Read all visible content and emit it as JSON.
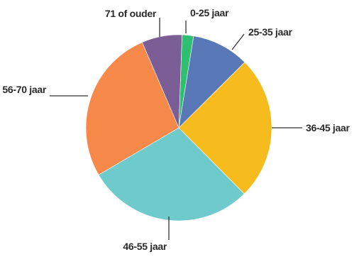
{
  "chart_data": {
    "type": "pie",
    "title": "",
    "start_angle_deg": 2,
    "direction": "clockwise",
    "categories": [
      "0-25 jaar",
      "25-35 jaar",
      "36-45 jaar",
      "46-55 jaar",
      "56-70 jaar",
      "71 of ouder"
    ],
    "values": [
      2,
      10,
      25,
      29,
      27,
      7
    ],
    "unit": "%",
    "colors": [
      "#2fbf71",
      "#5878b8",
      "#f6bb1c",
      "#6fcacb",
      "#f6894a",
      "#7a5e95"
    ],
    "legend": "none"
  }
}
